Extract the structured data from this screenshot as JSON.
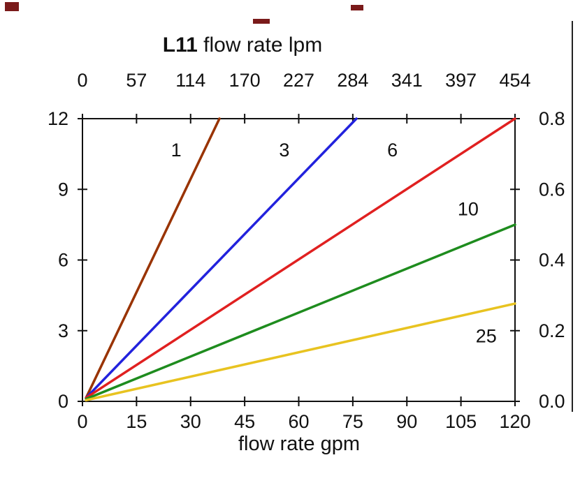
{
  "chart_data": {
    "type": "line",
    "title": "L11 flow rate lpm",
    "title_bold": "L11",
    "title_rest": " flow rate lpm",
    "xlabel": "flow rate gpm",
    "x_axis_bottom": {
      "label": "flow rate gpm",
      "ticks": [
        0,
        15,
        30,
        45,
        60,
        75,
        90,
        105,
        120
      ]
    },
    "x_axis_top": {
      "label": "flow rate lpm",
      "ticks": [
        0,
        57,
        114,
        170,
        227,
        284,
        341,
        397,
        454
      ]
    },
    "y_axis_left": {
      "ticks": [
        0,
        3,
        6,
        9,
        12
      ]
    },
    "y_axis_right": {
      "ticks": [
        "0.0",
        "0.2",
        "0.4",
        "0.6",
        "0.8"
      ]
    },
    "x_range": [
      0,
      120
    ],
    "y_range": [
      0,
      12
    ],
    "grid": false,
    "legend_position": "inline-labels",
    "series": [
      {
        "name": "1",
        "color": "#993300",
        "points": [
          [
            1,
            0.15
          ],
          [
            38,
            12
          ]
        ],
        "label_pos": [
          26,
          10.4
        ]
      },
      {
        "name": "3",
        "color": "#2222dd",
        "points": [
          [
            1,
            0.15
          ],
          [
            76,
            12
          ]
        ],
        "label_pos": [
          56,
          10.4
        ]
      },
      {
        "name": "6",
        "color": "#e02020",
        "points": [
          [
            1,
            0.15
          ],
          [
            120,
            12
          ]
        ],
        "label_pos": [
          86,
          10.4
        ]
      },
      {
        "name": "10",
        "color": "#1e8c1e",
        "points": [
          [
            1,
            0.1
          ],
          [
            120,
            7.5
          ]
        ],
        "label_pos": [
          107,
          7.9
        ]
      },
      {
        "name": "25",
        "color": "#e8c320",
        "points": [
          [
            1,
            0.05
          ],
          [
            120,
            4.15
          ]
        ],
        "label_pos": [
          112,
          2.5
        ]
      }
    ]
  }
}
